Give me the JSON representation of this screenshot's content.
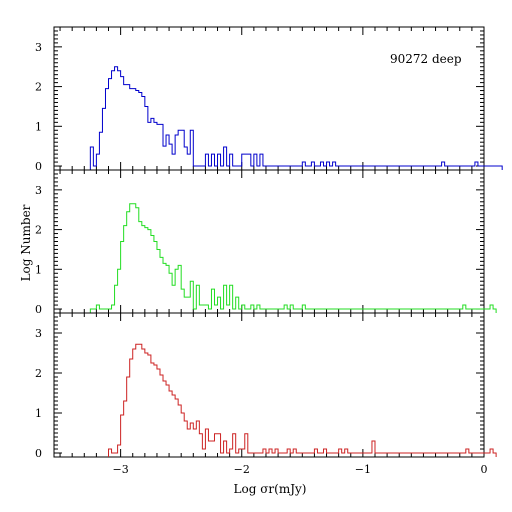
{
  "chart_data": {
    "type": "histogram-stack",
    "annotation": "90272 deep",
    "xlabel": "Log σr(mJy)",
    "ylabel": "Log Number",
    "xlim": [
      -3.55,
      0.0
    ],
    "ylim": [
      -0.1,
      3.5
    ],
    "x_ticks": [
      -3,
      -2,
      -1,
      0
    ],
    "y_ticks": [
      0,
      1,
      2,
      3
    ],
    "step": 0.025,
    "panels": [
      {
        "color": "#0000cc",
        "start": -3.25,
        "values": [
          0.48,
          0,
          0.3,
          0.85,
          1.45,
          1.95,
          2.2,
          2.4,
          2.5,
          2.4,
          2.25,
          2.05,
          2.05,
          1.95,
          1.95,
          1.9,
          1.85,
          1.75,
          1.5,
          1.1,
          1.2,
          1.1,
          1.05,
          1.05,
          0.5,
          0.78,
          0.55,
          0.3,
          0.78,
          0.9,
          0.9,
          0.48,
          0.3,
          0.9,
          0,
          0,
          0,
          0,
          0.3,
          0,
          0.3,
          0,
          0.3,
          0,
          0.48,
          0,
          0.3,
          0,
          0,
          0,
          0.3,
          0.3,
          0.3,
          0,
          0.3,
          0,
          0.3,
          0,
          0,
          0,
          0,
          0,
          0,
          0,
          0,
          0,
          0,
          0,
          0,
          0,
          0.1,
          0,
          0,
          0.1,
          0,
          0,
          0.1,
          0,
          0.1,
          0,
          0.1,
          0,
          0,
          0,
          0,
          0,
          0,
          0,
          0,
          0,
          0,
          0,
          0,
          0,
          0,
          0,
          0,
          0,
          0,
          0,
          0,
          0,
          0,
          0,
          0,
          0,
          0,
          0,
          0,
          0,
          0,
          0,
          0,
          0,
          0,
          0,
          0.1,
          0,
          0,
          0,
          0,
          0,
          0,
          0,
          0,
          0,
          0,
          0.1,
          0,
          0,
          0,
          0,
          0,
          0,
          0,
          0
        ]
      },
      {
        "color": "#22dd22",
        "start": -3.25,
        "values": [
          0,
          0,
          0.1,
          0,
          0,
          0,
          0,
          0.1,
          0.6,
          1.0,
          1.7,
          2.1,
          2.45,
          2.65,
          2.65,
          2.55,
          2.2,
          2.1,
          2.05,
          2.0,
          1.85,
          1.7,
          1.5,
          1.3,
          1.15,
          1.1,
          0.9,
          0.6,
          1.0,
          1.1,
          0.5,
          0.3,
          0.3,
          0.7,
          0,
          0.6,
          0.1,
          0.1,
          0.1,
          0,
          0.5,
          0.1,
          0.3,
          0,
          0.6,
          0.1,
          0.6,
          0,
          0.3,
          0,
          0.1,
          0,
          0,
          0.1,
          0,
          0.1,
          0,
          0,
          0,
          0,
          0,
          0,
          0,
          0,
          0.1,
          0,
          0.1,
          0,
          0,
          0,
          0.1,
          0,
          0,
          0,
          0,
          0,
          0,
          0,
          0,
          0,
          0,
          0,
          0,
          0,
          0,
          0,
          0,
          0,
          0,
          0,
          0,
          0,
          0,
          0,
          0,
          0,
          0,
          0,
          0,
          0,
          0,
          0,
          0,
          0,
          0,
          0,
          0,
          0,
          0,
          0,
          0,
          0,
          0,
          0,
          0,
          0,
          0,
          0,
          0,
          0,
          0,
          0,
          0,
          0.1,
          0,
          0,
          0,
          0,
          0,
          0,
          0,
          0,
          0.1,
          0
        ]
      },
      {
        "color": "#cc2222",
        "start": -3.1,
        "values": [
          0.1,
          0,
          0,
          0.2,
          0.95,
          1.3,
          1.9,
          2.35,
          2.6,
          2.72,
          2.72,
          2.6,
          2.5,
          2.45,
          2.25,
          2.2,
          2.1,
          1.95,
          1.8,
          1.7,
          1.55,
          1.45,
          1.35,
          1.2,
          1.0,
          0.8,
          0.6,
          0.75,
          0.6,
          0.8,
          0.48,
          0.1,
          0.6,
          0.3,
          0.3,
          0.48,
          0.48,
          0,
          0.3,
          0,
          0.1,
          0.48,
          0,
          0.1,
          0.1,
          0.48,
          0,
          0,
          0,
          0,
          0,
          0.1,
          0,
          0.1,
          0,
          0.1,
          0,
          0,
          0,
          0.1,
          0,
          0.1,
          0,
          0,
          0,
          0,
          0,
          0,
          0.1,
          0,
          0,
          0.1,
          0,
          0,
          0,
          0,
          0.1,
          0,
          0.1,
          0,
          0,
          0,
          0,
          0,
          0,
          0,
          0,
          0.3,
          0,
          0,
          0,
          0,
          0,
          0,
          0,
          0,
          0,
          0,
          0,
          0,
          0,
          0,
          0,
          0,
          0,
          0,
          0,
          0,
          0,
          0,
          0,
          0,
          0,
          0,
          0,
          0,
          0,
          0,
          0.1,
          0,
          0,
          0,
          0,
          0,
          0,
          0,
          0.1,
          0
        ]
      }
    ]
  }
}
